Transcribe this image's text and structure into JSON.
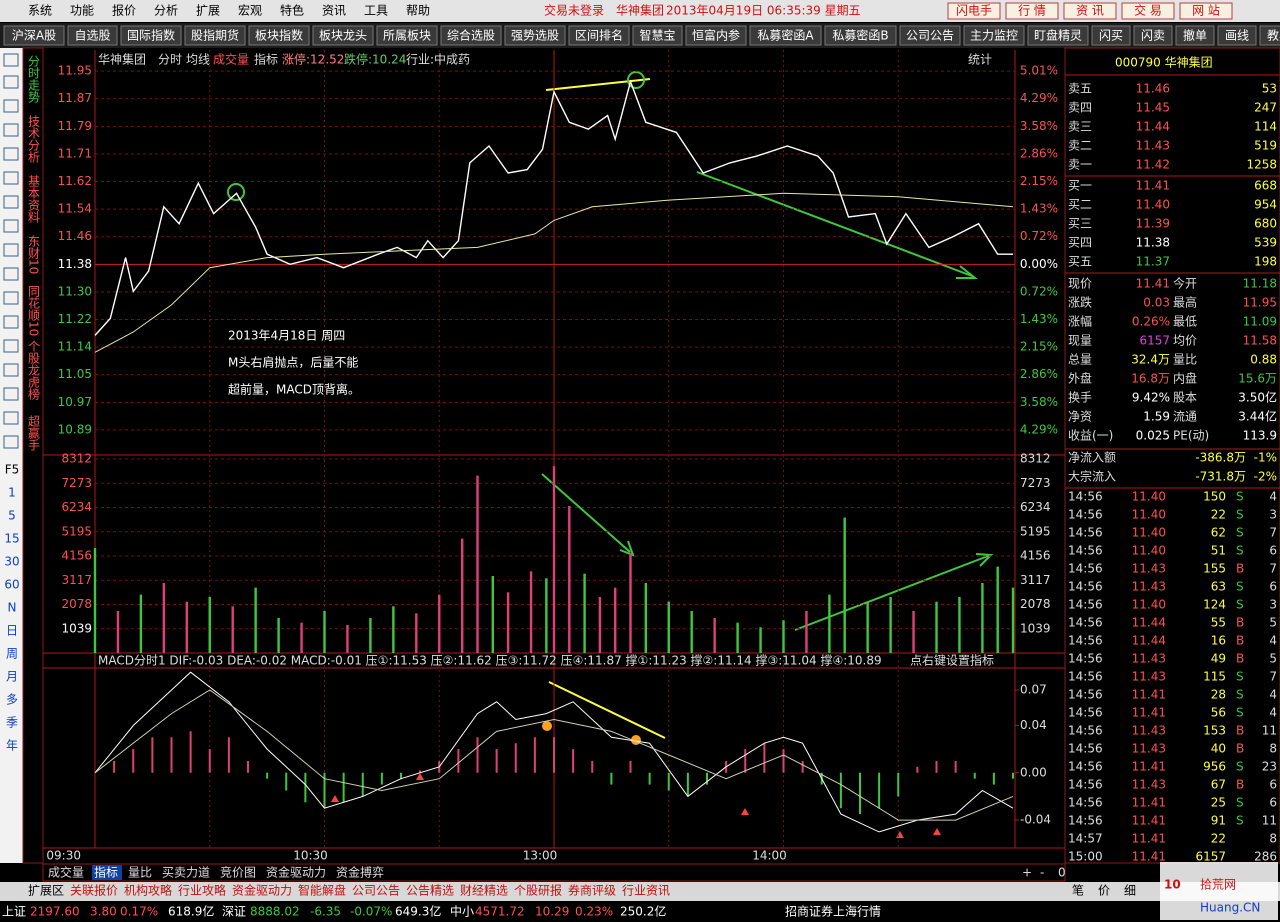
{
  "menu": {
    "items": [
      "系统",
      "功能",
      "报价",
      "分析",
      "扩展",
      "宏观",
      "特色",
      "资讯",
      "工具",
      "帮助"
    ],
    "status": "交易未登录",
    "stock": "华神集团",
    "datetime": "2013年04月19日 06:35:39 星期五",
    "buttons": [
      "闪电手",
      "行 情",
      "资 讯",
      "交 易",
      "网 站"
    ]
  },
  "toolbar": [
    "沪深A股",
    "自选股",
    "国际指数",
    "股指期货",
    "板块指数",
    "板块龙头",
    "所属板块",
    "综合选股",
    "强势选股",
    "区间排名",
    "智慧宝",
    "恒富内参",
    "私募密函A",
    "私募密函B",
    "公司公告",
    "主力监控",
    "盯盘精灵",
    "闪买",
    "闪卖",
    "撤单",
    "画线",
    "教卿"
  ],
  "sidebar": {
    "tabs": [
      "分时走势",
      "技术分析",
      "基本资料",
      "东财10",
      "同花顺10",
      "个股龙虎榜",
      "超赢手"
    ],
    "periods": [
      "F5",
      "1",
      "5",
      "15",
      "30",
      "60",
      "N",
      "日",
      "周",
      "月",
      "多",
      "季",
      "年"
    ]
  },
  "chart_data": [
    {
      "type": "line",
      "name": "华神集团",
      "mode": "分时",
      "avg": "均线",
      "vol": "成交量",
      "indicator": "指标",
      "limit_up": "涨停:12.52",
      "limit_down": "跌停:10.24",
      "industry": "行业:中成药",
      "stats": "统计",
      "annotation": [
        "2013年4月18日 周四",
        "M头右肩抛点，后量不能",
        "超前量，MACD顶背离。"
      ],
      "xlim": [
        0,
        240
      ],
      "xticks": [
        {
          "value": 0,
          "label": "09:30"
        },
        {
          "value": 60,
          "label": "10:30"
        },
        {
          "value": 120,
          "label": "13:00"
        },
        {
          "value": 180,
          "label": "14:00"
        }
      ],
      "vgrid": [
        30,
        60,
        90,
        120,
        150,
        180,
        210
      ],
      "ylim": [
        10.831,
        11.996
      ],
      "yticks": [
        {
          "value": 11.9512,
          "label": "11.95"
        },
        {
          "value": 11.8696,
          "label": "11.87"
        },
        {
          "value": 11.788,
          "label": "11.79"
        },
        {
          "value": 11.7064,
          "label": "11.71"
        },
        {
          "value": 11.6248,
          "label": "11.62"
        },
        {
          "value": 11.5432,
          "label": "11.54"
        },
        {
          "value": 11.4616,
          "label": "11.46"
        },
        11.38,
        {
          "value": 11.2984,
          "label": "11.30"
        },
        {
          "value": 11.2168,
          "label": "11.22"
        },
        {
          "value": 11.1352,
          "label": "11.14"
        },
        {
          "value": 11.0536,
          "label": "11.05"
        },
        {
          "value": 10.972,
          "label": "10.97"
        },
        {
          "value": 10.8904,
          "label": "10.89"
        }
      ],
      "pct_labels": [
        "5.01%",
        "4.29%",
        "3.58%",
        "2.86%",
        "2.15%",
        "1.43%",
        "0.72%",
        "0.00%",
        "0.72%",
        "1.43%",
        "2.15%",
        "2.86%",
        "3.58%",
        "4.29%"
      ],
      "series": [
        {
          "color": "#ffffff",
          "x": [
            0,
            4,
            8,
            10,
            14,
            18,
            22,
            27,
            31,
            37,
            42,
            45,
            51,
            58,
            65,
            74,
            79,
            84,
            87,
            91,
            95,
            98,
            103,
            108,
            113,
            117,
            120,
            124,
            129,
            134,
            136,
            140,
            144,
            152,
            159,
            166,
            173,
            181,
            189,
            193,
            197,
            204,
            207,
            212,
            218,
            224,
            231,
            236,
            240
          ],
          "values": [
            11.17,
            11.22,
            11.4,
            11.3,
            11.36,
            11.55,
            11.5,
            11.62,
            11.53,
            11.59,
            11.49,
            11.41,
            11.38,
            11.4,
            11.37,
            11.41,
            11.43,
            11.4,
            11.45,
            11.4,
            11.45,
            11.68,
            11.73,
            11.65,
            11.66,
            11.72,
            11.89,
            11.8,
            11.78,
            11.82,
            11.75,
            11.92,
            11.8,
            11.77,
            11.65,
            11.68,
            11.7,
            11.73,
            11.7,
            11.65,
            11.52,
            11.53,
            11.44,
            11.53,
            11.43,
            11.46,
            11.5,
            11.41,
            11.41
          ]
        },
        {
          "color": "#e8e8a0",
          "x": [
            0,
            10,
            20,
            30,
            45,
            60,
            80,
            100,
            115,
            120,
            130,
            150,
            180,
            210,
            240
          ],
          "values": [
            11.12,
            11.18,
            11.26,
            11.37,
            11.4,
            11.41,
            11.42,
            11.43,
            11.47,
            11.51,
            11.55,
            11.57,
            11.59,
            11.58,
            11.55
          ]
        }
      ]
    },
    {
      "type": "bar",
      "xlim": [
        0,
        240
      ],
      "ylim": [
        0,
        8312
      ],
      "yticks": [
        8312,
        7273,
        6234,
        5195,
        4156,
        3117,
        2078,
        1039
      ],
      "up_color": "#e0407a",
      "down_color": "#3ec83e",
      "x": [
        0,
        6,
        12,
        18,
        24,
        30,
        36,
        42,
        48,
        54,
        60,
        66,
        72,
        78,
        84,
        90,
        96,
        100,
        104,
        108,
        114,
        118,
        120,
        124,
        128,
        132,
        136,
        140,
        144,
        150,
        156,
        162,
        168,
        174,
        180,
        186,
        192,
        196,
        202,
        208,
        214,
        220,
        226,
        232,
        236,
        240
      ],
      "values": [
        4500,
        1800,
        2500,
        3000,
        2200,
        2400,
        2000,
        2800,
        1500,
        1300,
        1800,
        1200,
        1500,
        2000,
        1700,
        2500,
        4900,
        7600,
        3300,
        2600,
        3500,
        3200,
        8000,
        6300,
        3400,
        2400,
        2800,
        4300,
        3000,
        2200,
        1800,
        1500,
        1300,
        1100,
        1400,
        1800,
        2500,
        5800,
        2200,
        2400,
        1800,
        2200,
        2400,
        3000,
        3700,
        2800
      ],
      "rising": [
        false,
        true,
        false,
        true,
        true,
        false,
        true,
        false,
        false,
        true,
        false,
        true,
        false,
        false,
        true,
        true,
        true,
        true,
        false,
        true,
        true,
        false,
        true,
        true,
        false,
        true,
        true,
        true,
        false,
        false,
        false,
        true,
        false,
        false,
        false,
        true,
        false,
        false,
        false,
        false,
        true,
        false,
        false,
        false,
        false,
        false
      ]
    },
    {
      "type": "macd",
      "header": "MACD分时1  DIF:-0.03  DEA:-0.02  MACD:-0.01  压①:11.53  压②:11.62  压③:11.72  压④:11.87  撑①:11.23  撑②:11.14  撑③:11.04  撑④:10.89",
      "hint": "点右键设置指标",
      "xlim": [
        0,
        240
      ],
      "ylim": [
        -0.0611,
        0.0869
      ],
      "yticks": [
        0.07,
        0.04,
        {
          "value": 0,
          "label": "0.00"
        },
        -0.04
      ],
      "pos_color": "#e0407a",
      "neg_color": "#3ec83e",
      "x": [
        0,
        5,
        10,
        15,
        20,
        25,
        30,
        35,
        40,
        45,
        50,
        55,
        60,
        65,
        70,
        75,
        80,
        85,
        90,
        95,
        100,
        105,
        110,
        115,
        120,
        125,
        130,
        135,
        140,
        145,
        150,
        155,
        160,
        165,
        170,
        175,
        180,
        185,
        190,
        195,
        200,
        205,
        210,
        215,
        220,
        225,
        230,
        235,
        240
      ],
      "values": [
        0,
        0.01,
        0.02,
        0.03,
        0.03,
        0.035,
        0.02,
        0.03,
        0.01,
        -0.005,
        -0.015,
        -0.025,
        -0.03,
        -0.025,
        -0.02,
        -0.01,
        -0.005,
        0.002,
        0.01,
        0.02,
        0.03,
        0.02,
        0.025,
        0.03,
        0.03,
        0.02,
        0.01,
        -0.01,
        0.01,
        -0.01,
        -0.015,
        -0.02,
        -0.01,
        0.01,
        0.02,
        0.025,
        0.02,
        0.01,
        -0.01,
        -0.03,
        -0.035,
        -0.03,
        -0.02,
        0.005,
        0.01,
        0.01,
        -0.005,
        -0.01,
        -0.005
      ],
      "series": [
        {
          "color": "#ffffff",
          "x": [
            0,
            10,
            20,
            25,
            35,
            45,
            55,
            60,
            70,
            80,
            90,
            100,
            105,
            110,
            118,
            125,
            135,
            145,
            155,
            165,
            175,
            180,
            185,
            195,
            205,
            215,
            225,
            232,
            240
          ],
          "values": [
            0,
            0.04,
            0.07,
            0.085,
            0.06,
            0.02,
            -0.01,
            -0.03,
            -0.02,
            -0.005,
            0.005,
            0.05,
            0.06,
            0.045,
            0.05,
            0.06,
            0.03,
            0.025,
            -0.02,
            0.005,
            0.025,
            0.03,
            0.025,
            -0.035,
            -0.05,
            -0.04,
            -0.035,
            -0.015,
            -0.03
          ]
        },
        {
          "color": "#d0d0b0",
          "x": [
            0,
            20,
            30,
            45,
            60,
            75,
            90,
            105,
            120,
            135,
            150,
            165,
            180,
            195,
            210,
            225,
            240
          ],
          "values": [
            0,
            0.05,
            0.07,
            0.035,
            -0.005,
            -0.015,
            -0.005,
            0.035,
            0.045,
            0.035,
            0.015,
            -0.005,
            0.015,
            -0.01,
            -0.04,
            -0.04,
            -0.02
          ]
        }
      ]
    }
  ],
  "quote": {
    "title": "000790 华神集团",
    "book": [
      {
        "label": "卖五",
        "price": "11.46",
        "vol": "53",
        "color": "#ff5050"
      },
      {
        "label": "卖四",
        "price": "11.45",
        "vol": "247",
        "color": "#ff5050"
      },
      {
        "label": "卖三",
        "price": "11.44",
        "vol": "114",
        "color": "#ff5050"
      },
      {
        "label": "卖二",
        "price": "11.43",
        "vol": "519",
        "color": "#ff5050"
      },
      {
        "label": "卖一",
        "price": "11.42",
        "vol": "1258",
        "color": "#ff5050"
      },
      {
        "label": "买一",
        "price": "11.41",
        "vol": "668",
        "color": "#ff5050"
      },
      {
        "label": "买二",
        "price": "11.40",
        "vol": "954",
        "color": "#ff5050"
      },
      {
        "label": "买三",
        "price": "11.39",
        "vol": "680",
        "color": "#ff5050"
      },
      {
        "label": "买四",
        "price": "11.38",
        "vol": "539",
        "color": "#ffffff"
      },
      {
        "label": "买五",
        "price": "11.37",
        "vol": "198",
        "color": "#3ec83e"
      }
    ],
    "stats": [
      {
        "k1": "现价",
        "v1": "11.41",
        "c1": "#ff5050",
        "k2": "今开",
        "v2": "11.18",
        "c2": "#3ec83e"
      },
      {
        "k1": "涨跌",
        "v1": "0.03",
        "c1": "#ff5050",
        "k2": "最高",
        "v2": "11.95",
        "c2": "#ff5050"
      },
      {
        "k1": "涨幅",
        "v1": "0.26%",
        "c1": "#ff5050",
        "k2": "最低",
        "v2": "11.09",
        "c2": "#3ec83e"
      },
      {
        "k1": "现量",
        "v1": "6157",
        "c1": "#e040e0",
        "k2": "均价",
        "v2": "11.58",
        "c2": "#ff5050"
      },
      {
        "k1": "总量",
        "v1": "32.4万",
        "c1": "#ffff40",
        "k2": "量比",
        "v2": "0.88",
        "c2": "#ffff40"
      },
      {
        "k1": "外盘",
        "v1": "16.8万",
        "c1": "#ff5050",
        "k2": "内盘",
        "v2": "15.6万",
        "c2": "#3ec83e"
      },
      {
        "k1": "换手",
        "v1": "9.42%",
        "c1": "#ffffff",
        "k2": "股本",
        "v2": "3.50亿",
        "c2": "#ffffff"
      },
      {
        "k1": "净资",
        "v1": "1.59",
        "c1": "#ffffff",
        "k2": "流通",
        "v2": "3.44亿",
        "c2": "#ffffff"
      },
      {
        "k1": "收益(一)",
        "v1": "0.025",
        "c1": "#ffffff",
        "k2": "PE(动)",
        "v2": "113.9",
        "c2": "#ffffff"
      }
    ],
    "flows": [
      {
        "k": "净流入额",
        "v": "-386.8万",
        "p": "-1%"
      },
      {
        "k": "大宗流入",
        "v": "-731.8万",
        "p": "-2%"
      }
    ],
    "trades": [
      [
        "14:56",
        "11.40",
        "150",
        "S",
        "4"
      ],
      [
        "14:56",
        "11.40",
        "22",
        "S",
        "3"
      ],
      [
        "14:56",
        "11.40",
        "62",
        "S",
        "7"
      ],
      [
        "14:56",
        "11.40",
        "51",
        "S",
        "6"
      ],
      [
        "14:56",
        "11.43",
        "155",
        "B",
        "7"
      ],
      [
        "14:56",
        "11.43",
        "63",
        "S",
        "6"
      ],
      [
        "14:56",
        "11.40",
        "124",
        "S",
        "3"
      ],
      [
        "14:56",
        "11.44",
        "55",
        "B",
        "5"
      ],
      [
        "14:56",
        "11.44",
        "16",
        "B",
        "4"
      ],
      [
        "14:56",
        "11.43",
        "49",
        "B",
        "5"
      ],
      [
        "14:56",
        "11.43",
        "115",
        "S",
        "7"
      ],
      [
        "14:56",
        "11.41",
        "28",
        "S",
        "4"
      ],
      [
        "14:56",
        "11.41",
        "56",
        "S",
        "4"
      ],
      [
        "14:56",
        "11.43",
        "153",
        "B",
        "11"
      ],
      [
        "14:56",
        "11.43",
        "40",
        "B",
        "8"
      ],
      [
        "14:56",
        "11.41",
        "956",
        "S",
        "23"
      ],
      [
        "14:56",
        "11.43",
        "67",
        "B",
        "6"
      ],
      [
        "14:56",
        "11.41",
        "25",
        "S",
        "6"
      ],
      [
        "14:56",
        "11.41",
        "91",
        "S",
        "11"
      ],
      [
        "14:57",
        "11.41",
        "22",
        null,
        "8"
      ],
      [
        "15:00",
        "11.41",
        "6157",
        null,
        "286"
      ]
    ]
  },
  "tabs": [
    "成交量",
    "指标",
    "量比",
    "买卖力道",
    "竞价图",
    "资金驱动力",
    "资金搏弈"
  ],
  "tab_controls": [
    "+",
    "-",
    "0"
  ],
  "infobar": [
    "扩展区",
    "关联报价",
    "机构攻略",
    "行业攻略",
    "资金驱动力",
    "智能解盘",
    "公司公告",
    "公告精选",
    "财经精选",
    "个股研报",
    "券商评级",
    "行业资讯"
  ],
  "right_tabs": [
    "笔",
    "价",
    "细"
  ],
  "status": [
    {
      "t": "上证",
      "c": "#ffffff"
    },
    {
      "t": "2197.60",
      "c": "#ff5050"
    },
    {
      "t": "3.80",
      "c": "#ff5050"
    },
    {
      "t": "0.17%",
      "c": "#ff5050"
    },
    {
      "t": "618.9亿",
      "c": "#ffffff"
    },
    {
      "t": "深证",
      "c": "#ffffff"
    },
    {
      "t": "8888.02",
      "c": "#3ec83e"
    },
    {
      "t": "-6.35",
      "c": "#3ec83e"
    },
    {
      "t": "-0.07%",
      "c": "#3ec83e"
    },
    {
      "t": "649.3亿",
      "c": "#ffffff"
    },
    {
      "t": "中小",
      "c": "#ffffff"
    },
    {
      "t": "4571.72",
      "c": "#ff5050"
    },
    {
      "t": "10.29",
      "c": "#ff5050"
    },
    {
      "t": "0.23%",
      "c": "#ff5050"
    },
    {
      "t": "250.2亿",
      "c": "#ffffff"
    },
    {
      "t": "招商证券上海行情",
      "c": "#ffffff"
    }
  ],
  "watermark": {
    "logo": "10",
    "site": "拾荒网",
    "url": "Huang.CN"
  }
}
